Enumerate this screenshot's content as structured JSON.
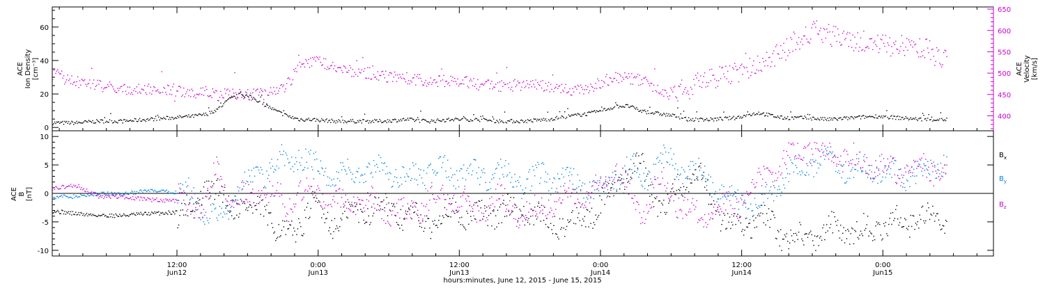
{
  "chart_data": [
    {
      "type": "scatter",
      "panel": "top",
      "ylabel_left": [
        "ACE",
        "Ion Density",
        "[cm⁻³]"
      ],
      "ylabel_right": [
        "ACE",
        "Velocity",
        "[km/s]"
      ],
      "ylim_left": [
        -2,
        72
      ],
      "yticks_left": [
        "0",
        "20",
        "40",
        "60"
      ],
      "ylim_right": [
        365,
        655
      ],
      "yticks_right": [
        "400",
        "450",
        "500",
        "550",
        "600",
        "650"
      ],
      "colors": {
        "density": "#000000",
        "velocity": "#cc00cc",
        "right_axis": "#cc00cc"
      },
      "series": [
        {
          "axis": "left",
          "hours": [
            0,
            2,
            4,
            6,
            8,
            10,
            12,
            13,
            14,
            15,
            16,
            17,
            18,
            19,
            20,
            21,
            22,
            24,
            26,
            28,
            30,
            32,
            34,
            36,
            38,
            40,
            42,
            44,
            46,
            48,
            49,
            50,
            52,
            53,
            54,
            56,
            58,
            60,
            62,
            64,
            66,
            68,
            70,
            72,
            74,
            76
          ],
          "values": [
            3,
            3,
            4,
            4,
            5,
            6,
            7,
            8,
            11,
            17,
            20,
            18,
            14,
            10,
            7,
            5,
            5,
            4,
            4,
            4,
            5,
            4,
            5,
            5,
            4,
            4,
            5,
            7,
            9,
            13,
            13,
            10,
            8,
            7,
            5,
            5,
            6,
            9,
            6,
            6,
            5,
            6,
            7,
            6,
            5,
            5
          ]
        },
        {
          "axis": "right",
          "hours": [
            0,
            2,
            4,
            6,
            8,
            10,
            12,
            13,
            14,
            16,
            18,
            19,
            19.8,
            21,
            22,
            23,
            24,
            25,
            26,
            28,
            30,
            32,
            34,
            36,
            38,
            40,
            42,
            44,
            46,
            47,
            48,
            50,
            51,
            52,
            54,
            56,
            58,
            60,
            62,
            63,
            64,
            65,
            66,
            67,
            68,
            69,
            70,
            72,
            74,
            75,
            76
          ],
          "values": [
            500,
            480,
            470,
            465,
            462,
            463,
            455,
            460,
            450,
            452,
            452,
            455,
            470,
            515,
            530,
            525,
            520,
            505,
            505,
            495,
            490,
            480,
            485,
            475,
            470,
            475,
            470,
            460,
            470,
            485,
            490,
            485,
            470,
            450,
            465,
            490,
            500,
            520,
            550,
            575,
            590,
            600,
            590,
            585,
            570,
            575,
            570,
            565,
            560,
            545,
            535
          ]
        }
      ]
    },
    {
      "type": "scatter",
      "panel": "bottom",
      "ylabel": [
        "ACE",
        "B",
        "[nT]"
      ],
      "ylim": [
        -11,
        11
      ],
      "yticks": [
        "-10",
        "-5",
        "0",
        "5",
        "10"
      ],
      "legend": [
        {
          "main": "B",
          "sub": "x",
          "color": "#000000"
        },
        {
          "main": "B",
          "sub": "y",
          "color": "#0080e0"
        },
        {
          "main": "B",
          "sub": "z",
          "color": "#cc00cc"
        }
      ],
      "series": [
        {
          "name": "Bx",
          "hours": [
            0,
            2,
            4,
            6,
            8,
            10,
            12,
            13,
            14,
            15,
            16,
            17,
            18,
            19,
            20,
            21,
            22,
            24,
            26,
            28,
            30,
            32,
            34,
            36,
            38,
            40,
            42,
            44,
            46,
            47,
            48,
            49,
            50,
            51,
            52,
            53,
            54,
            55,
            56,
            58,
            60,
            62,
            64,
            66,
            68,
            70,
            72,
            74,
            76
          ],
          "values": [
            -3,
            -3.5,
            -3.8,
            -3.8,
            -3.5,
            -3.3,
            -3,
            2,
            0,
            -2,
            -1,
            -4,
            -2,
            -6,
            -8,
            -5,
            -2,
            -5,
            -3,
            -2,
            -4,
            -5,
            -3,
            -4,
            -3,
            -3,
            -5,
            -5,
            -3,
            -1,
            2,
            4,
            5,
            0,
            -3,
            1,
            2,
            3,
            -2,
            -6,
            -4,
            -7,
            -8,
            -6,
            -7,
            -6,
            -5,
            -4,
            -5
          ]
        },
        {
          "name": "By",
          "hours": [
            0,
            2,
            4,
            6,
            8,
            10,
            12,
            13,
            14,
            15,
            16,
            17,
            18,
            19,
            20,
            21,
            22,
            24,
            26,
            28,
            30,
            32,
            34,
            36,
            38,
            40,
            42,
            44,
            46,
            47,
            48,
            49,
            50,
            51,
            52,
            53,
            54,
            55,
            56,
            58,
            60,
            62,
            64,
            66,
            68,
            70,
            72,
            74,
            76
          ],
          "values": [
            -0.5,
            -0.5,
            0,
            0,
            0.5,
            0.3,
            0,
            -3,
            -5,
            -2,
            1,
            3,
            4,
            5,
            6,
            7,
            5,
            3,
            4,
            4,
            3,
            4,
            4,
            3,
            4,
            2,
            3,
            2,
            1,
            0,
            4,
            5,
            3,
            4,
            6,
            5,
            4,
            3,
            2,
            -1,
            -2,
            3,
            5,
            6,
            4,
            5,
            3,
            4,
            6
          ]
        },
        {
          "name": "Bz",
          "hours": [
            0,
            2,
            4,
            6,
            8,
            10,
            12,
            13,
            14,
            15,
            16,
            17,
            18,
            19,
            20,
            21,
            22,
            24,
            26,
            28,
            30,
            32,
            34,
            36,
            38,
            40,
            42,
            44,
            46,
            47,
            48,
            49,
            50,
            51,
            52,
            53,
            54,
            55,
            56,
            58,
            60,
            62,
            64,
            66,
            68,
            70,
            72,
            74,
            76
          ],
          "values": [
            1,
            1.5,
            -0.5,
            -0.5,
            -1,
            -1.2,
            -1.5,
            -3,
            5,
            -2,
            -1,
            0,
            0,
            0,
            -2,
            0,
            1,
            -2,
            -1,
            -2,
            -4,
            -1,
            0,
            -3,
            -1,
            -4,
            -2,
            0,
            0,
            2,
            5,
            0,
            -3,
            0,
            2,
            -1,
            -3,
            -4,
            -3,
            -2,
            2,
            5,
            8,
            7,
            6,
            5,
            4,
            5,
            4
          ]
        }
      ]
    }
  ],
  "x_axis": {
    "range_hours": [
      0,
      80
    ],
    "ticks": [
      {
        "hour": 10.6,
        "time": "12:00",
        "date": "Jun12"
      },
      {
        "hour": 22.6,
        "time": "0:00",
        "date": "Jun13"
      },
      {
        "hour": 34.6,
        "time": "12:00",
        "date": "Jun13"
      },
      {
        "hour": 46.6,
        "time": "0:00",
        "date": "Jun14"
      },
      {
        "hour": 58.6,
        "time": "12:00",
        "date": "Jun14"
      },
      {
        "hour": 70.6,
        "time": "0:00",
        "date": "Jun15"
      }
    ],
    "title": "hours:minutes, June 12, 2015 - June 15, 2015"
  }
}
